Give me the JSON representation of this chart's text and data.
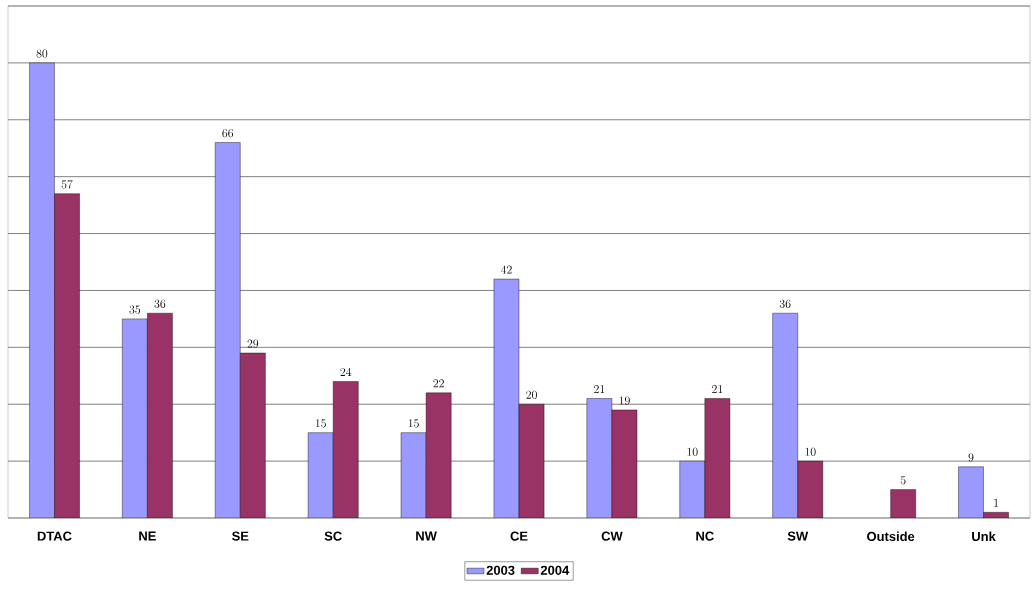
{
  "chart_data": {
    "type": "bar",
    "categories": [
      "DTAC",
      "NE",
      "SE",
      "SC",
      "NW",
      "CE",
      "CW",
      "NC",
      "SW",
      "Outside",
      "Unk"
    ],
    "series": [
      {
        "name": "2003",
        "color": "#9999ff",
        "values": [
          80,
          35,
          66,
          15,
          15,
          42,
          21,
          10,
          36,
          null,
          9
        ]
      },
      {
        "name": "2004",
        "color": "#993366",
        "values": [
          57,
          36,
          29,
          24,
          22,
          20,
          19,
          21,
          10,
          5,
          1
        ]
      }
    ],
    "ylim": [
      0,
      90
    ],
    "yticks": [
      {
        "value": 0,
        "label": null
      },
      {
        "value": 10,
        "label": null
      },
      {
        "value": 20,
        "label": null
      },
      {
        "value": 30,
        "label": null
      },
      {
        "value": 40,
        "label": null
      },
      {
        "value": 50,
        "label": null
      },
      {
        "value": 60,
        "label": null
      },
      {
        "value": 70,
        "label": null
      },
      {
        "value": 80,
        "label": null
      },
      {
        "value": 90,
        "label": null
      }
    ],
    "tick_labels": "x",
    "grid": "y",
    "legend": "bottom",
    "data_labels": true
  }
}
